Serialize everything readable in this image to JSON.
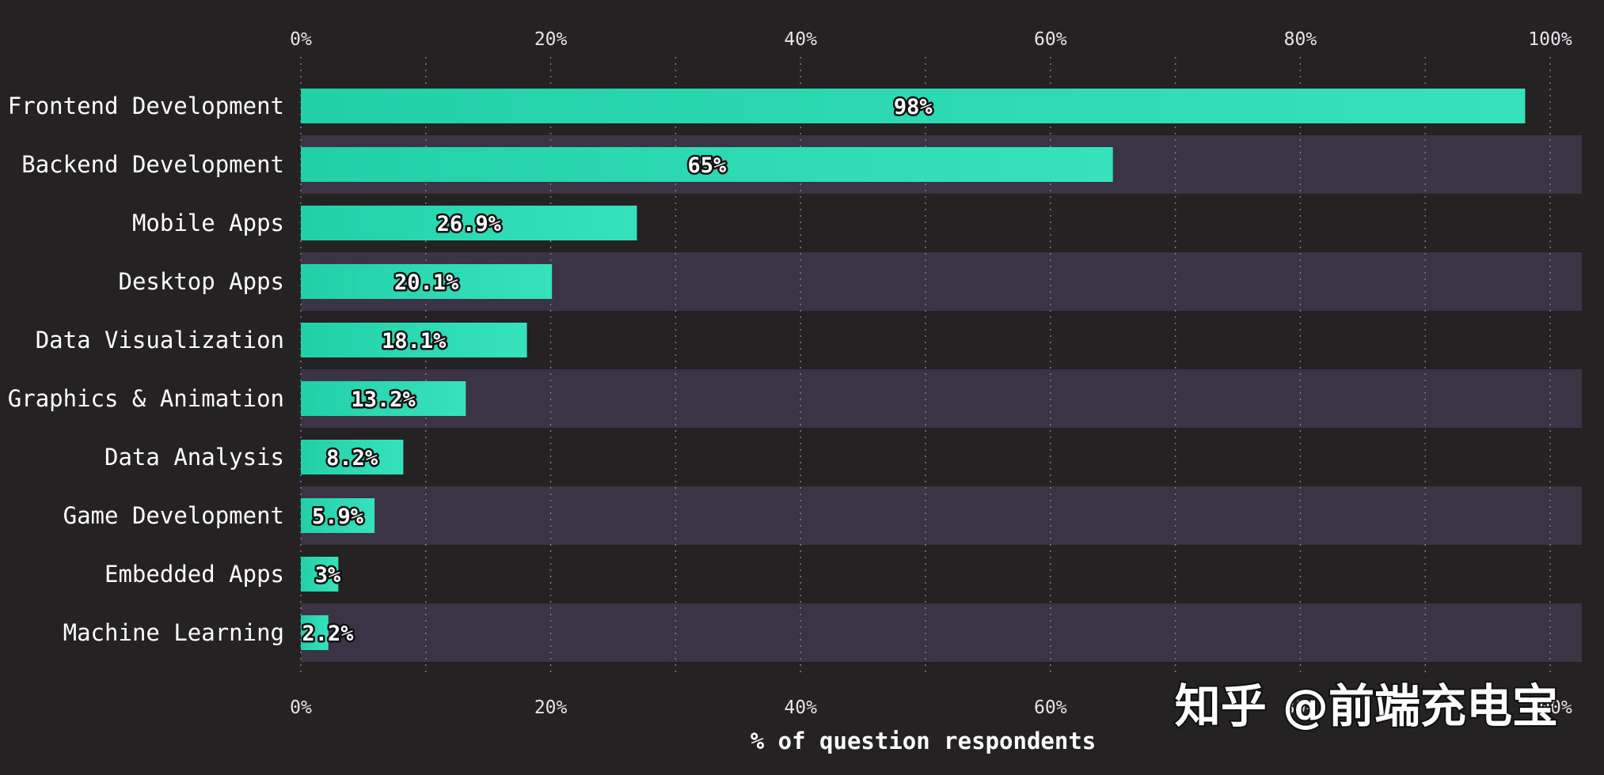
{
  "chart_data": {
    "type": "bar",
    "orientation": "horizontal",
    "categories": [
      "Frontend Development",
      "Backend Development",
      "Mobile Apps",
      "Desktop Apps",
      "Data Visualization",
      "Graphics & Animation",
      "Data Analysis",
      "Game Development",
      "Embedded Apps",
      "Machine Learning"
    ],
    "values": [
      98,
      65,
      26.9,
      20.1,
      18.1,
      13.2,
      8.2,
      5.9,
      3,
      2.2
    ],
    "value_labels": [
      "98%",
      "65%",
      "26.9%",
      "20.1%",
      "18.1%",
      "13.2%",
      "8.2%",
      "5.9%",
      "3%",
      "2.2%"
    ],
    "xlabel": "% of question respondents",
    "ylabel": "",
    "xlim": [
      0,
      100
    ],
    "x_ticks": [
      0,
      20,
      40,
      60,
      80,
      100
    ],
    "x_tick_labels": [
      "0%",
      "20%",
      "40%",
      "60%",
      "80%",
      "100%"
    ],
    "x_minor_gridlines": [
      10,
      30,
      50,
      70,
      90
    ],
    "tick_label_positions": "top and bottom",
    "grid": true,
    "alternating_row_bands": true,
    "legend": "none"
  },
  "colors": {
    "background": "#252223",
    "band": "#3a3445",
    "bar_start": "#22d0a8",
    "bar_end": "#36e2bc",
    "grid": "#8d8a96",
    "text": "#ffffff"
  },
  "watermark": {
    "text": "知乎 @前端充电宝"
  }
}
